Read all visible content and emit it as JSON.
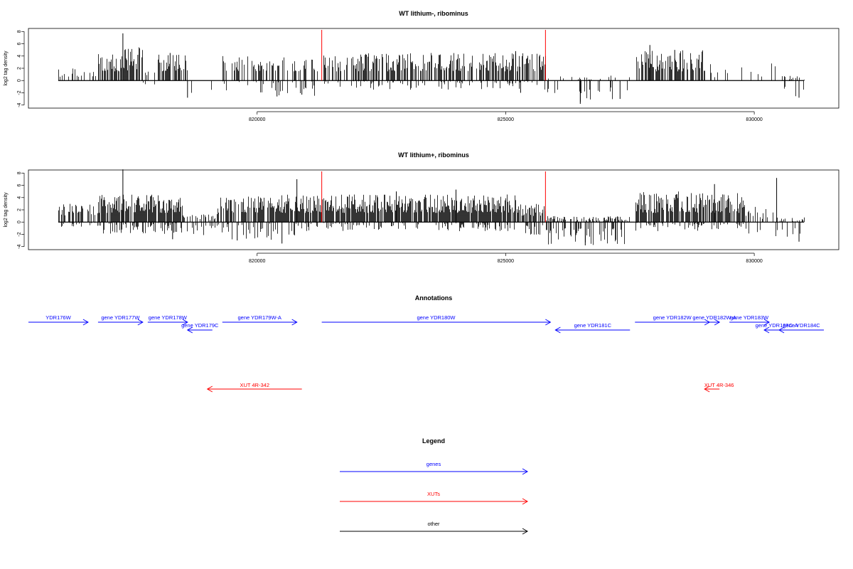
{
  "colors": {
    "gene": "#0000ff",
    "xut": "#ff0000",
    "other": "#000000",
    "marker": "#ff0000"
  },
  "chart_data": [
    {
      "type": "bar",
      "title": "WT lithium-, ribominus",
      "ylabel": "log2 tag density",
      "xlim": [
        815400,
        831700
      ],
      "ylim": [
        -4.5,
        8.5
      ],
      "xticks": [
        820000,
        825000,
        830000
      ],
      "yticks": [
        -4,
        -2,
        0,
        2,
        4,
        6,
        8
      ],
      "grid": false,
      "vlines": [
        821300,
        825800
      ],
      "data_range": [
        816000,
        831000
      ],
      "note": "dense per-position tag density; peak 7.7 near 817300, min about -3.8 near 826500",
      "regions": [
        {
          "from": 816000,
          "to": 816800,
          "pos": [
            0.5,
            2.0
          ],
          "neg": [
            0,
            0
          ],
          "density": 0.35
        },
        {
          "from": 816800,
          "to": 817700,
          "pos": [
            1.5,
            5.5
          ],
          "neg": [
            0,
            0
          ],
          "density": 0.8
        },
        {
          "from": 817700,
          "to": 818000,
          "pos": [
            0.5,
            1.5
          ],
          "neg": [
            0,
            1.0
          ],
          "density": 0.3
        },
        {
          "from": 818000,
          "to": 818600,
          "pos": [
            1.5,
            4.5
          ],
          "neg": [
            0,
            0
          ],
          "density": 0.7
        },
        {
          "from": 818600,
          "to": 819300,
          "pos": [
            0,
            0
          ],
          "neg": [
            0.5,
            3.0
          ],
          "density": 0.15
        },
        {
          "from": 819300,
          "to": 821300,
          "pos": [
            1.5,
            4.0
          ],
          "neg": [
            0,
            2.5
          ],
          "density": 0.35
        },
        {
          "from": 821300,
          "to": 825800,
          "pos": [
            1.5,
            4.5
          ],
          "neg": [
            0,
            1.5
          ],
          "density": 0.7
        },
        {
          "from": 825800,
          "to": 827500,
          "pos": [
            0,
            0.8
          ],
          "neg": [
            1.0,
            3.5
          ],
          "density": 0.3
        },
        {
          "from": 827600,
          "to": 829000,
          "pos": [
            1.5,
            5.0
          ],
          "neg": [
            0,
            0
          ],
          "density": 0.8
        },
        {
          "from": 829000,
          "to": 830500,
          "pos": [
            0.5,
            3.0
          ],
          "neg": [
            0,
            0
          ],
          "density": 0.15
        },
        {
          "from": 830500,
          "to": 831000,
          "pos": [
            0,
            0.8
          ],
          "neg": [
            1.0,
            3.0
          ],
          "density": 0.5
        }
      ],
      "peaks": [
        [
          817300,
          7.7
        ],
        [
          817600,
          4.2
        ],
        [
          818250,
          4.5
        ],
        [
          822200,
          4.2
        ],
        [
          825200,
          4.8
        ],
        [
          827900,
          5.8
        ],
        [
          828400,
          5.0
        ]
      ],
      "troughs": [
        [
          818600,
          -2.8
        ],
        [
          820400,
          -2.6
        ],
        [
          820900,
          -2.3
        ],
        [
          825300,
          -2.0
        ],
        [
          826500,
          -3.8
        ],
        [
          827300,
          -3.0
        ],
        [
          830900,
          -2.8
        ]
      ]
    },
    {
      "type": "bar",
      "title": "WT lithium+, ribominus",
      "ylabel": "log2 tag density",
      "xlim": [
        815400,
        831700
      ],
      "ylim": [
        -4.5,
        8.5
      ],
      "xticks": [
        820000,
        825000,
        830000
      ],
      "yticks": [
        -4,
        -2,
        0,
        2,
        4,
        6,
        8
      ],
      "grid": false,
      "vlines": [
        821300,
        825800
      ],
      "data_range": [
        816000,
        831000
      ],
      "note": "dense per-position tag density; peak 8.6 near 817300, min about -3.8 near 826600",
      "regions": [
        {
          "from": 816000,
          "to": 816800,
          "pos": [
            1.0,
            3.0
          ],
          "neg": [
            0,
            0.8
          ],
          "density": 0.6
        },
        {
          "from": 816800,
          "to": 818500,
          "pos": [
            1.5,
            4.5
          ],
          "neg": [
            0,
            2.0
          ],
          "density": 0.95
        },
        {
          "from": 818500,
          "to": 819200,
          "pos": [
            0.3,
            1.5
          ],
          "neg": [
            0.5,
            2.5
          ],
          "density": 0.5
        },
        {
          "from": 819200,
          "to": 821300,
          "pos": [
            1.5,
            4.5
          ],
          "neg": [
            0,
            3.0
          ],
          "density": 0.85
        },
        {
          "from": 821300,
          "to": 825200,
          "pos": [
            1.5,
            4.5
          ],
          "neg": [
            0,
            1.5
          ],
          "density": 0.95
        },
        {
          "from": 825200,
          "to": 825800,
          "pos": [
            1.0,
            3.0
          ],
          "neg": [
            0.5,
            3.0
          ],
          "density": 0.8
        },
        {
          "from": 825800,
          "to": 827500,
          "pos": [
            0,
            1.0
          ],
          "neg": [
            1.0,
            3.8
          ],
          "density": 0.85
        },
        {
          "from": 827600,
          "to": 829800,
          "pos": [
            1.5,
            5.0
          ],
          "neg": [
            0,
            1.5
          ],
          "density": 0.9
        },
        {
          "from": 829800,
          "to": 830400,
          "pos": [
            0.5,
            2.5
          ],
          "neg": [
            0,
            2.0
          ],
          "density": 0.35
        },
        {
          "from": 830400,
          "to": 831000,
          "pos": [
            0,
            0.8
          ],
          "neg": [
            1.0,
            3.0
          ],
          "density": 0.6
        }
      ],
      "peaks": [
        [
          817300,
          8.6
        ],
        [
          820800,
          7.0
        ],
        [
          822800,
          5.0
        ],
        [
          824000,
          5.3
        ],
        [
          829200,
          6.2
        ],
        [
          830450,
          7.2
        ]
      ],
      "troughs": [
        [
          818300,
          -2.8
        ],
        [
          819600,
          -3.0
        ],
        [
          820500,
          -3.5
        ],
        [
          826600,
          -3.8
        ],
        [
          830900,
          -3.2
        ]
      ]
    }
  ],
  "annotations": {
    "title": "Annotations",
    "xlim": [
      815400,
      831700
    ],
    "genes": [
      {
        "label": "YDR176W",
        "x1": 815400,
        "x2": 816600,
        "dir": "right",
        "row": 0
      },
      {
        "label": "gene YDR177W",
        "x1": 816800,
        "x2": 817700,
        "dir": "right",
        "row": 0
      },
      {
        "label": "gene YDR178W",
        "x1": 817800,
        "x2": 818600,
        "dir": "right",
        "row": 0
      },
      {
        "label": "gene YDR179C",
        "x1": 818600,
        "x2": 819100,
        "dir": "left",
        "row": 1
      },
      {
        "label": "gene YDR179W-A",
        "x1": 819300,
        "x2": 820800,
        "dir": "right",
        "row": 0
      },
      {
        "label": "gene YDR180W",
        "x1": 821300,
        "x2": 825900,
        "dir": "right",
        "row": 0
      },
      {
        "label": "gene YDR181C",
        "x1": 826000,
        "x2": 827500,
        "dir": "left",
        "row": 1
      },
      {
        "label": "gene YDR182W",
        "x1": 827600,
        "x2": 829100,
        "dir": "right",
        "row": 0
      },
      {
        "label": "gene YDR182W-A",
        "x1": 829100,
        "x2": 829300,
        "dir": "right",
        "row": 0
      },
      {
        "label": "gene YDR183W",
        "x1": 829500,
        "x2": 830300,
        "dir": "right",
        "row": 0
      },
      {
        "label": "gene YDR183C-A",
        "x1": 830200,
        "x2": 830700,
        "dir": "left",
        "row": 1
      },
      {
        "label": "gene YDR184C",
        "x1": 830500,
        "x2": 831400,
        "dir": "left",
        "row": 1
      }
    ],
    "xuts": [
      {
        "label": "XUT 4R-342",
        "x1": 819000,
        "x2": 820900,
        "dir": "left"
      },
      {
        "label": "XUT 4R-346",
        "x1": 829000,
        "x2": 829300,
        "dir": "left"
      }
    ]
  },
  "legend": {
    "title": "Legend",
    "items": [
      {
        "label": "genes",
        "color": "#0000ff"
      },
      {
        "label": "XUTs",
        "color": "#ff0000"
      },
      {
        "label": "other",
        "color": "#000000"
      }
    ]
  }
}
